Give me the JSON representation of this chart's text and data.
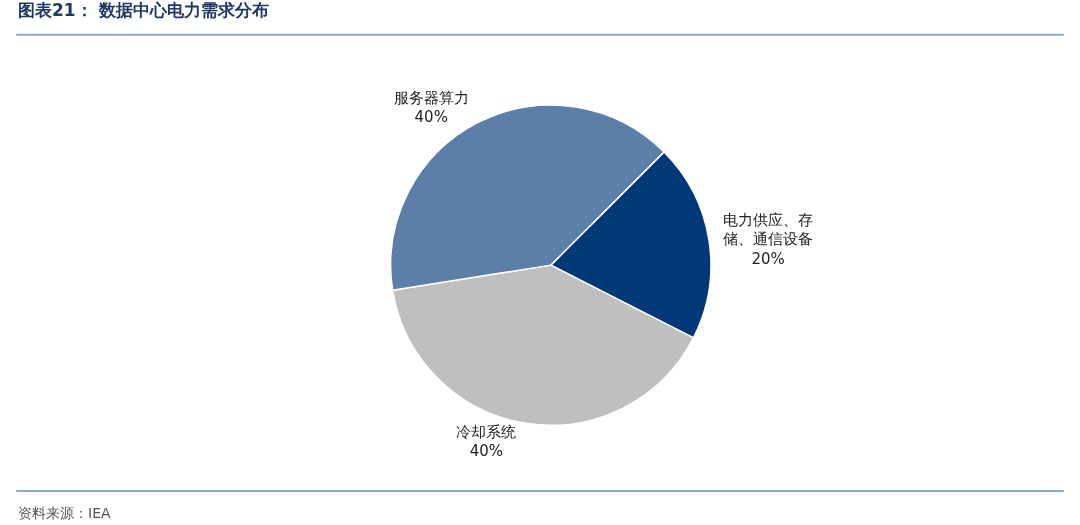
{
  "chart_data": {
    "type": "pie",
    "title": "图表21： 数据中心电力需求分布",
    "categories": [
      "电力供应、存储、通信设备",
      "冷却系统",
      "服务器算力"
    ],
    "value_labels": [
      "20%",
      "40%",
      "40%"
    ],
    "values": [
      20,
      40,
      40
    ],
    "colors": [
      "#003878",
      "#bfbfbf",
      "#5b7fa8"
    ],
    "annotations": [
      "资料来源：IEA"
    ]
  }
}
